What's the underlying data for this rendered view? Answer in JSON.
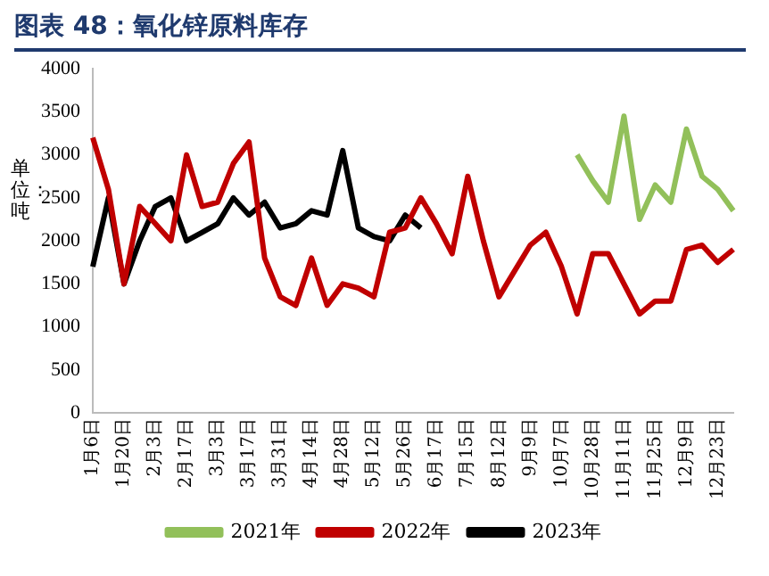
{
  "chart_data": {
    "type": "line",
    "title": "图表 48：氧化锌原料库存",
    "ylabel": "单位：吨",
    "categories": [
      "1月6日",
      null,
      "1月20日",
      null,
      "2月3日",
      null,
      "2月17日",
      null,
      "3月3日",
      null,
      "3月17日",
      null,
      "3月31日",
      null,
      "4月14日",
      null,
      "4月28日",
      null,
      "5月12日",
      null,
      "5月26日",
      null,
      "6月17日",
      null,
      "7月15日",
      null,
      "8月12日",
      null,
      "9月9日",
      null,
      "10月7日",
      null,
      "10月28日",
      null,
      "11月11日",
      null,
      "11月25日",
      null,
      "12月9日",
      null,
      "12月23日",
      null
    ],
    "series": [
      {
        "name": "2021年",
        "color": "#92c05a",
        "values": [
          null,
          null,
          null,
          null,
          null,
          null,
          null,
          null,
          null,
          null,
          null,
          null,
          null,
          null,
          null,
          null,
          null,
          null,
          null,
          null,
          null,
          null,
          null,
          null,
          null,
          null,
          null,
          null,
          null,
          null,
          null,
          3000,
          2700,
          2450,
          3450,
          2250,
          2650,
          2450,
          3300,
          2750,
          2600,
          2350
        ]
      },
      {
        "name": "2022年",
        "color": "#c00000",
        "values": [
          3200,
          2600,
          1500,
          2400,
          2200,
          2000,
          3000,
          2400,
          2450,
          2900,
          3150,
          1800,
          1350,
          1250,
          1800,
          1250,
          1500,
          1450,
          1350,
          2100,
          2150,
          2500,
          2200,
          1850,
          2750,
          2000,
          1350,
          1650,
          1950,
          2100,
          1700,
          1150,
          1850,
          1850,
          1500,
          1150,
          1300,
          1300,
          1900,
          1950,
          1750,
          1900
        ]
      },
      {
        "name": "2023年",
        "color": "#000000",
        "values": [
          1700,
          2500,
          1500,
          2000,
          2400,
          2500,
          2000,
          2100,
          2200,
          2500,
          2300,
          2450,
          2150,
          2200,
          2350,
          2300,
          3050,
          2150,
          2050,
          2000,
          2300,
          2150,
          null,
          null,
          null,
          null,
          null,
          null,
          null,
          null,
          null,
          null,
          null,
          null,
          null,
          null,
          null,
          null,
          null,
          null,
          null,
          null
        ]
      }
    ],
    "ylim": [
      0,
      4000
    ],
    "yticks": [
      0,
      500,
      1000,
      1500,
      2000,
      2500,
      3000,
      3500,
      4000
    ],
    "grid": false,
    "legend": "bottom",
    "marker": "none",
    "line_style": "solid"
  }
}
